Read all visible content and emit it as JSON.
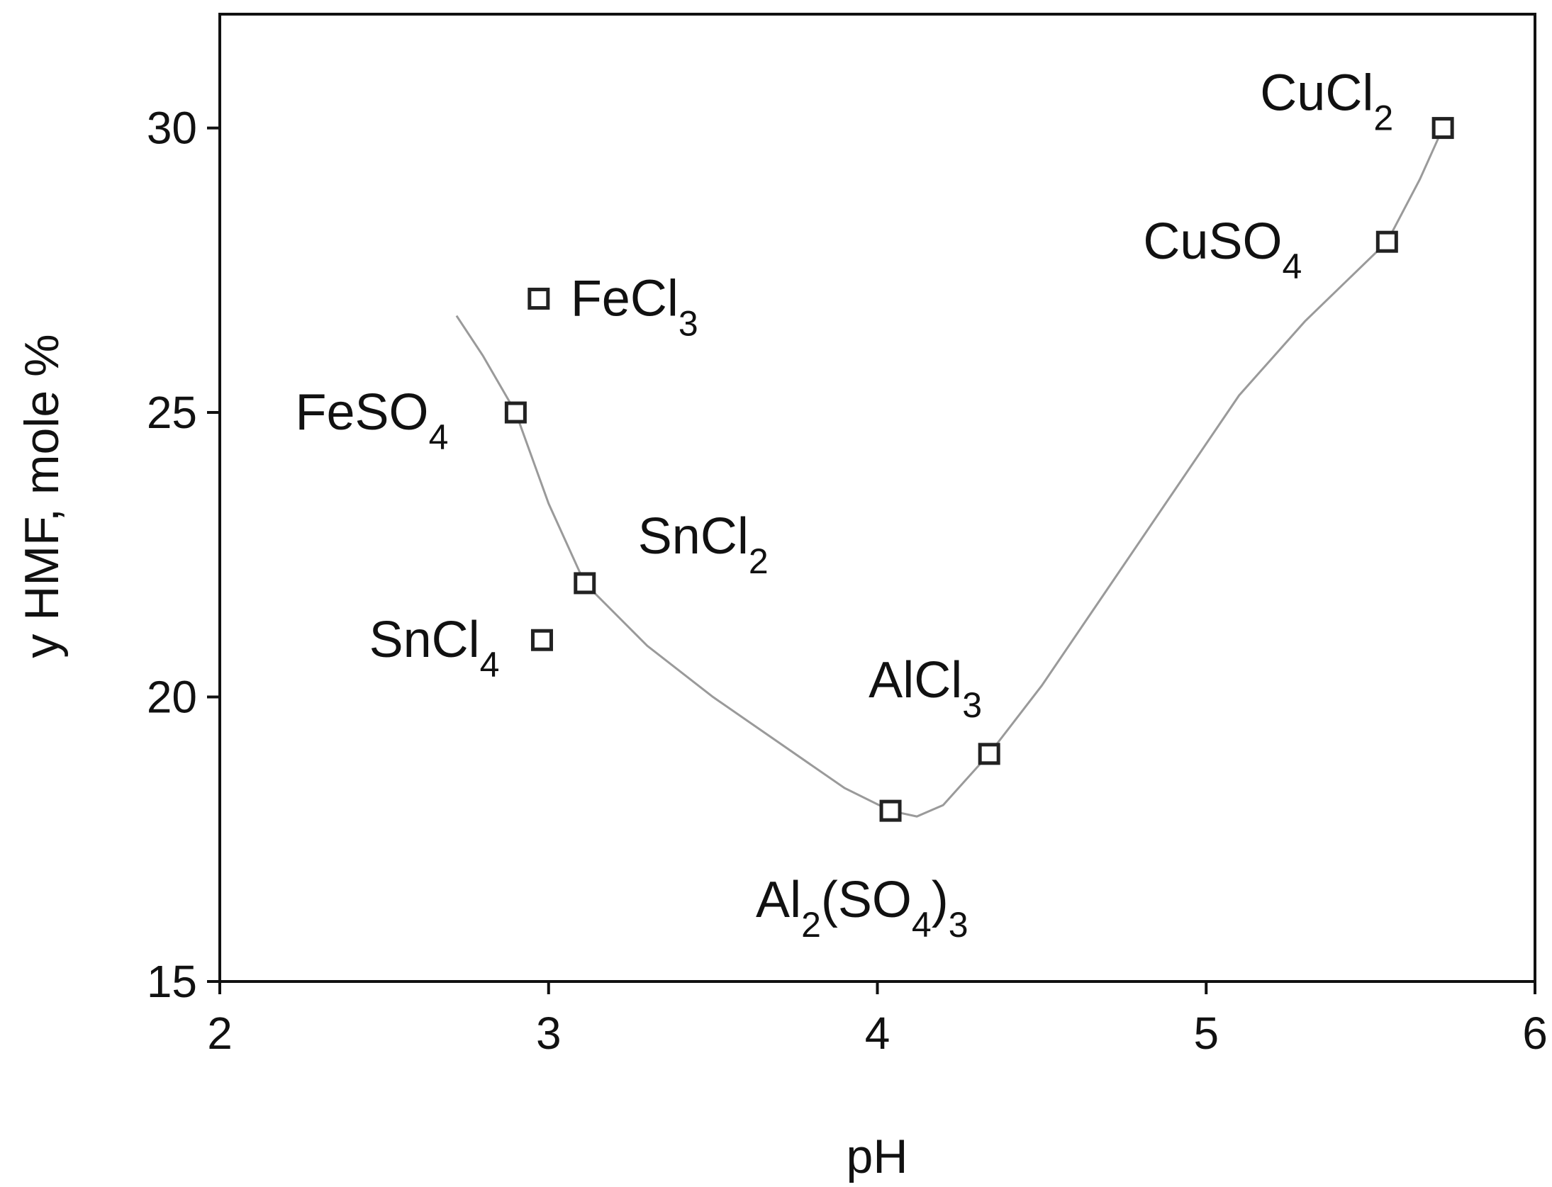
{
  "chart_data": {
    "type": "scatter",
    "title": "",
    "xlabel": "pH",
    "ylabel": "y HMF, mole %",
    "xlim": [
      2,
      6
    ],
    "ylim": [
      15,
      32
    ],
    "x_ticks": [
      2,
      3,
      4,
      5,
      6
    ],
    "y_ticks": [
      15,
      20,
      25,
      30
    ],
    "grid": false,
    "points": [
      {
        "x": 2.97,
        "y": 27.0,
        "label": "FeCl",
        "sub": "3"
      },
      {
        "x": 2.9,
        "y": 25.0,
        "label": "FeSO",
        "sub": "4"
      },
      {
        "x": 3.11,
        "y": 22.0,
        "label": "SnCl",
        "sub": "2"
      },
      {
        "x": 2.98,
        "y": 21.0,
        "label": "SnCl",
        "sub": "4"
      },
      {
        "x": 4.04,
        "y": 18.0,
        "label": "Al(SO)",
        "label_parts": [
          "Al",
          "2",
          "(SO",
          "4",
          ")",
          "3"
        ]
      },
      {
        "x": 4.34,
        "y": 19.0,
        "label": "AlCl",
        "sub": "3"
      },
      {
        "x": 5.55,
        "y": 28.0,
        "label": "CuSO",
        "sub": "4"
      },
      {
        "x": 5.72,
        "y": 30.0,
        "label": "CuCl",
        "sub": "2"
      }
    ],
    "trend_line": {
      "x": [
        2.72,
        2.8,
        2.9,
        3.0,
        3.11,
        3.3,
        3.5,
        3.7,
        3.9,
        4.04,
        4.12,
        4.2,
        4.34,
        4.5,
        4.7,
        4.9,
        5.1,
        5.3,
        5.55,
        5.65,
        5.72
      ],
      "y": [
        26.7,
        26.0,
        25.0,
        23.4,
        22.0,
        20.9,
        20.0,
        19.2,
        18.4,
        18.0,
        17.9,
        18.1,
        19.0,
        20.2,
        21.9,
        23.6,
        25.3,
        26.6,
        28.0,
        29.1,
        30.0
      ]
    },
    "colors": {
      "axis": "#111111",
      "marker": "#222222",
      "trend": "#9a9a9a"
    }
  }
}
